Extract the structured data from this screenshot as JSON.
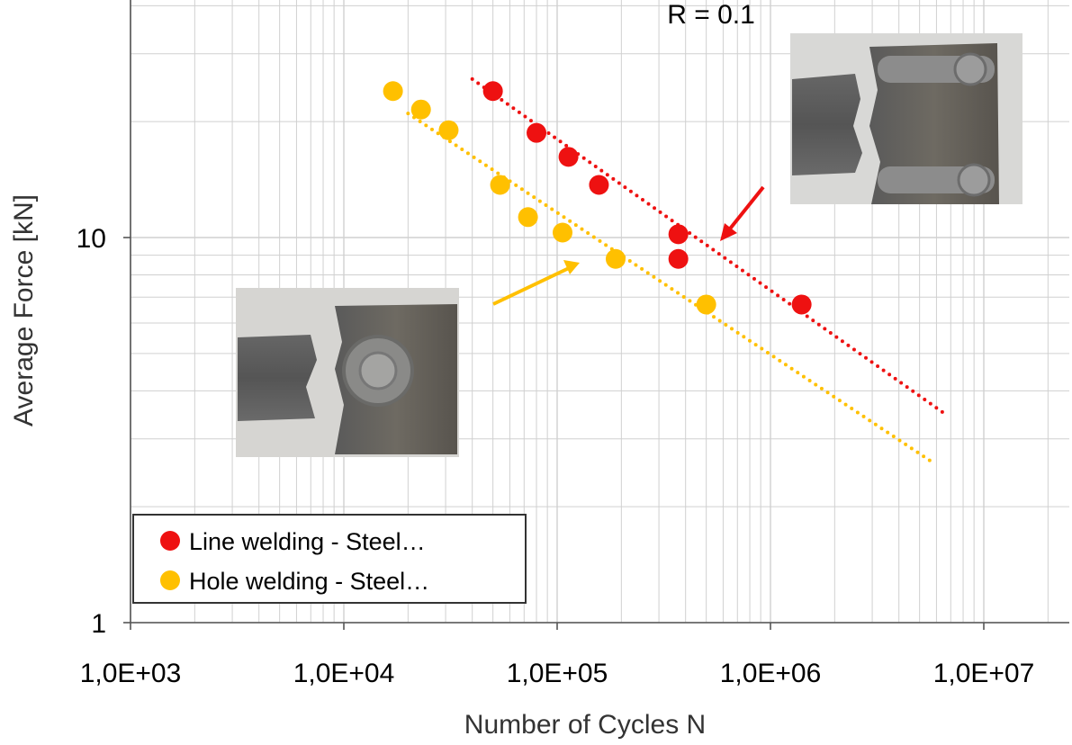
{
  "chart_data": {
    "type": "scatter",
    "title": "",
    "annotation": "R = 0.1",
    "xlabel": "Number of Cycles N",
    "ylabel": "Average Force [kN]",
    "x_scale": "log",
    "y_scale": "log",
    "xlim": [
      1000,
      25000000
    ],
    "ylim": [
      1,
      100
    ],
    "x_ticks": [
      1000,
      10000,
      100000,
      1000000,
      10000000
    ],
    "x_tick_labels": [
      "1,0E+03",
      "1,0E+04",
      "1,0E+05",
      "1,0E+06",
      "1,0E+07"
    ],
    "y_ticks": [
      1,
      10
    ],
    "y_tick_labels": [
      "1",
      "10"
    ],
    "grid": "major-and-minor",
    "legend_position": "bottom-left",
    "series": [
      {
        "name": "Line welding - Steel…",
        "color": "#ee1111",
        "marker": "circle",
        "points": [
          [
            50000,
            24.0
          ],
          [
            80000,
            18.7
          ],
          [
            113000,
            16.2
          ],
          [
            157000,
            13.7
          ],
          [
            370000,
            10.2
          ],
          [
            370000,
            8.8
          ],
          [
            1400000,
            6.7
          ]
        ],
        "trendline": {
          "style": "dotted",
          "from": [
            40000,
            25.8
          ],
          "to": [
            6500000,
            3.5
          ]
        }
      },
      {
        "name": "Hole welding - Steel…",
        "color": "#ffc000",
        "marker": "circle",
        "points": [
          [
            17000,
            24.0
          ],
          [
            23000,
            21.5
          ],
          [
            31000,
            19.0
          ],
          [
            54000,
            13.7
          ],
          [
            73000,
            11.3
          ],
          [
            106000,
            10.3
          ],
          [
            188000,
            8.8
          ],
          [
            500000,
            6.7
          ]
        ],
        "trendline": {
          "style": "dotted",
          "from": [
            20000,
            21.0
          ],
          "to": [
            5800000,
            2.6
          ]
        }
      }
    ],
    "inset_photos": [
      {
        "depicts": "line-weld-specimen-photo",
        "position": "top-right"
      },
      {
        "depicts": "hole-weld-specimen-photo",
        "position": "middle-left"
      }
    ]
  }
}
